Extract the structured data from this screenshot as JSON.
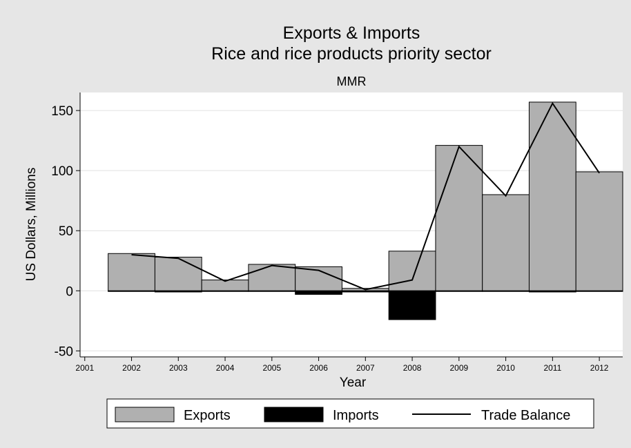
{
  "chart_data": {
    "type": "bar",
    "title": "Exports & Imports",
    "subtitle": "Rice and rice products priority sector",
    "subtitle2": "MMR",
    "xlabel": "Year",
    "ylabel": "US Dollars, Millions",
    "x_ticks": [
      "2001",
      "2002",
      "2003",
      "2004",
      "2005",
      "2006",
      "2007",
      "2008",
      "2009",
      "2010",
      "2011",
      "2012"
    ],
    "y_ticks": [
      -50,
      0,
      50,
      100,
      150
    ],
    "ylim": [
      -55,
      165
    ],
    "xlim": [
      2000.9,
      2012.5
    ],
    "grid": true,
    "legend_position": "bottom",
    "categories": [
      "2002",
      "2003",
      "2004",
      "2005",
      "2006",
      "2007",
      "2008",
      "2009",
      "2010",
      "2011",
      "2012"
    ],
    "series": [
      {
        "name": "Exports",
        "type": "bar",
        "color": "#b0b0b0",
        "values": [
          31,
          28,
          9,
          22,
          20,
          2,
          33,
          121,
          80,
          157,
          99
        ]
      },
      {
        "name": "Imports",
        "type": "bar",
        "color": "#000000",
        "values": [
          0,
          -1,
          0,
          0,
          -3,
          -1,
          -24,
          0,
          0,
          -1,
          0
        ]
      },
      {
        "name": "Trade Balance",
        "type": "line",
        "color": "#000000",
        "values": [
          30,
          27,
          8,
          21,
          17,
          1,
          9,
          120,
          79,
          156,
          98
        ]
      }
    ]
  }
}
